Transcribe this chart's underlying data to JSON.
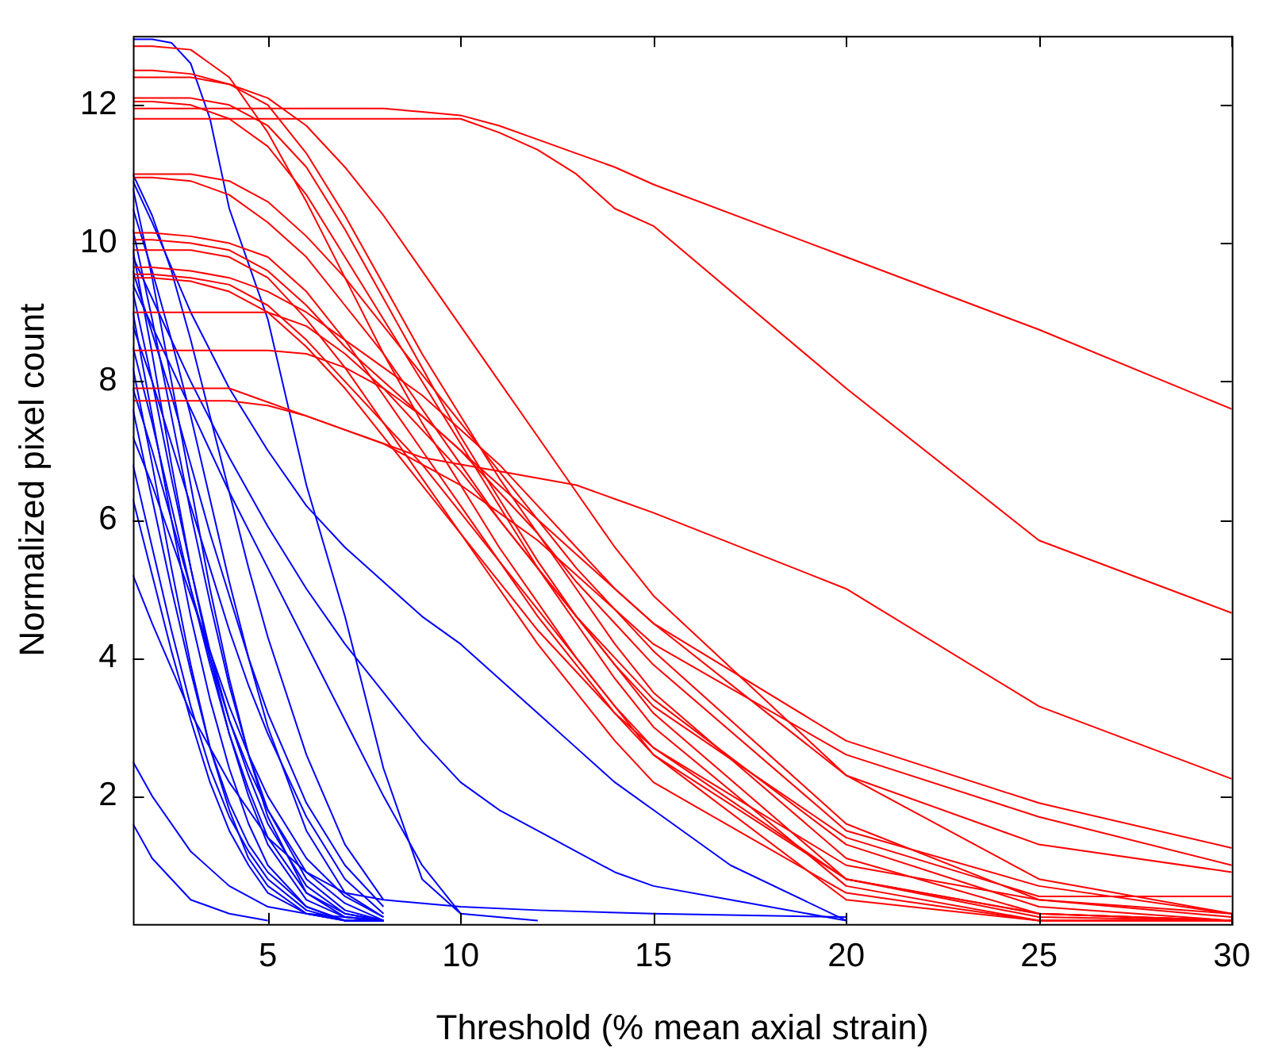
{
  "chart_data": {
    "type": "line",
    "xlabel": "Threshold (% mean axial strain)",
    "ylabel": "Normalized pixel count",
    "xlim": [
      1.5,
      30
    ],
    "ylim": [
      0.15,
      13
    ],
    "xticks": [
      5,
      10,
      15,
      20,
      25,
      30
    ],
    "yticks": [
      2,
      4,
      6,
      8,
      10,
      12
    ],
    "grid": false,
    "legend": false,
    "marker": "none",
    "line_style": "solid",
    "x": [
      1.5,
      2,
      3,
      4,
      5,
      6,
      7,
      8,
      9,
      10,
      11,
      12,
      13,
      14,
      15,
      20,
      25,
      30
    ],
    "series": [
      {
        "color": "#ff0000",
        "values": [
          11.95,
          11.95,
          11.95,
          11.95,
          11.95,
          11.95,
          11.95,
          11.95,
          11.9,
          11.85,
          11.7,
          11.5,
          11.3,
          11.1,
          10.85,
          9.8,
          8.75,
          7.6
        ]
      },
      {
        "color": "#ff0000",
        "values": [
          11.8,
          11.8,
          11.8,
          11.8,
          11.8,
          11.8,
          11.8,
          11.8,
          11.8,
          11.8,
          11.6,
          11.35,
          11.0,
          10.5,
          10.25,
          7.9,
          5.7,
          4.65
        ]
      },
      {
        "color": "#ff0000",
        "values": [
          12.85,
          12.85,
          12.8,
          12.4,
          11.6,
          10.6,
          9.5,
          8.4,
          7.4,
          6.5,
          5.6,
          4.8,
          4.0,
          3.3,
          2.6,
          0.5,
          0.2,
          0.2
        ]
      },
      {
        "color": "#ff0000",
        "values": [
          12.5,
          12.5,
          12.45,
          12.3,
          12.0,
          11.3,
          10.4,
          9.4,
          8.4,
          7.5,
          6.6,
          5.8,
          5.0,
          4.2,
          3.5,
          1.1,
          0.3,
          0.2
        ]
      },
      {
        "color": "#ff0000",
        "values": [
          12.4,
          12.4,
          12.4,
          12.3,
          12.1,
          11.7,
          11.1,
          10.4,
          9.6,
          8.8,
          8.0,
          7.2,
          6.4,
          5.6,
          4.9,
          2.3,
          0.8,
          0.3
        ]
      },
      {
        "color": "#ff0000",
        "values": [
          12.1,
          12.1,
          12.1,
          12.0,
          11.7,
          11.1,
          10.2,
          9.2,
          8.2,
          7.2,
          6.3,
          5.4,
          4.6,
          3.9,
          3.2,
          0.8,
          0.25,
          0.2
        ]
      },
      {
        "color": "#ff0000",
        "values": [
          12.05,
          12.05,
          12.0,
          11.8,
          11.4,
          10.7,
          9.8,
          8.9,
          8.0,
          7.1,
          6.2,
          5.3,
          4.5,
          3.7,
          3.0,
          0.7,
          0.2,
          0.2
        ]
      },
      {
        "color": "#ff0000",
        "values": [
          11.0,
          11.0,
          11.0,
          10.9,
          10.6,
          10.1,
          9.5,
          8.8,
          8.1,
          7.4,
          6.7,
          6.0,
          5.3,
          4.7,
          4.1,
          1.6,
          0.5,
          0.25
        ]
      },
      {
        "color": "#ff0000",
        "values": [
          10.95,
          10.95,
          10.9,
          10.7,
          10.3,
          9.8,
          9.1,
          8.4,
          7.6,
          6.8,
          6.0,
          5.3,
          4.6,
          4.0,
          3.4,
          1.3,
          0.4,
          0.2
        ]
      },
      {
        "color": "#ff0000",
        "values": [
          10.15,
          10.15,
          10.1,
          10.0,
          9.8,
          9.3,
          8.6,
          7.8,
          7.0,
          6.2,
          5.4,
          4.6,
          3.9,
          3.2,
          2.6,
          0.8,
          0.3,
          0.2
        ]
      },
      {
        "color": "#ff0000",
        "values": [
          10.05,
          10.05,
          10.0,
          9.9,
          9.6,
          9.1,
          8.5,
          8.0,
          7.5,
          7.0,
          6.5,
          6.0,
          5.5,
          5.0,
          4.5,
          2.8,
          1.9,
          1.25
        ]
      },
      {
        "color": "#ff0000",
        "values": [
          9.9,
          9.9,
          9.9,
          9.8,
          9.5,
          8.9,
          8.2,
          7.4,
          6.6,
          5.8,
          5.0,
          4.2,
          3.5,
          2.8,
          2.2,
          0.6,
          0.2,
          0.2
        ]
      },
      {
        "color": "#ff0000",
        "values": [
          9.65,
          9.65,
          9.6,
          9.5,
          9.3,
          9.0,
          8.6,
          8.2,
          7.8,
          7.3,
          6.8,
          6.2,
          5.6,
          5.0,
          4.5,
          2.3,
          1.3,
          0.9
        ]
      },
      {
        "color": "#ff0000",
        "values": [
          9.55,
          9.55,
          9.5,
          9.4,
          9.1,
          8.6,
          8.0,
          7.4,
          6.8,
          6.1,
          5.4,
          4.7,
          4.0,
          3.3,
          2.7,
          0.8,
          0.3,
          0.2
        ]
      },
      {
        "color": "#ff0000",
        "values": [
          9.5,
          9.5,
          9.45,
          9.3,
          9.0,
          8.5,
          7.9,
          7.2,
          6.5,
          5.8,
          5.1,
          4.4,
          3.8,
          3.2,
          2.7,
          1.0,
          0.5,
          0.3
        ]
      },
      {
        "color": "#ff0000",
        "values": [
          9.0,
          9.0,
          9.0,
          9.0,
          9.0,
          8.8,
          8.4,
          7.9,
          7.3,
          6.7,
          6.0,
          5.3,
          4.6,
          3.9,
          3.3,
          1.4,
          0.55,
          0.55
        ]
      },
      {
        "color": "#ff0000",
        "values": [
          8.45,
          8.45,
          8.45,
          8.45,
          8.45,
          8.4,
          8.2,
          7.9,
          7.5,
          7.0,
          6.4,
          5.8,
          5.1,
          4.5,
          3.9,
          1.5,
          0.7,
          0.3
        ]
      },
      {
        "color": "#ff0000",
        "values": [
          7.9,
          7.9,
          7.9,
          7.9,
          7.7,
          7.5,
          7.3,
          7.1,
          6.9,
          6.8,
          6.7,
          6.6,
          6.5,
          6.3,
          6.1,
          5.0,
          3.3,
          2.25
        ]
      },
      {
        "color": "#ff0000",
        "values": [
          7.72,
          7.72,
          7.72,
          7.72,
          7.65,
          7.5,
          7.3,
          7.1,
          6.8,
          6.5,
          6.1,
          5.7,
          5.2,
          4.7,
          4.2,
          2.6,
          1.7,
          1.0
        ]
      },
      {
        "color": "#0000ff",
        "x": [
          1.5,
          2,
          2.5,
          3,
          3.5,
          4,
          5,
          6,
          7,
          8,
          9,
          10,
          12
        ],
        "values": [
          12.95,
          12.95,
          12.9,
          12.6,
          11.8,
          10.5,
          8.9,
          6.5,
          4.6,
          2.4,
          0.8,
          0.3,
          0.2
        ]
      },
      {
        "color": "#0000ff",
        "x": [
          1.5,
          2,
          3,
          4,
          5,
          6,
          7,
          8,
          9,
          10,
          11,
          12,
          13,
          14,
          15,
          17,
          20
        ],
        "values": [
          10.9,
          10.3,
          9.0,
          7.9,
          7.0,
          6.2,
          5.6,
          5.1,
          4.6,
          4.2,
          3.7,
          3.2,
          2.7,
          2.2,
          1.8,
          1.0,
          0.2
        ]
      },
      {
        "color": "#0000ff",
        "x": [
          1.5,
          2,
          3,
          4,
          5,
          6,
          7,
          8,
          9,
          10,
          11,
          12,
          13,
          14,
          15,
          17,
          20
        ],
        "values": [
          9.8,
          9.2,
          8.0,
          6.9,
          5.9,
          5.0,
          4.2,
          3.5,
          2.8,
          2.2,
          1.8,
          1.5,
          1.2,
          0.9,
          0.7,
          0.5,
          0.2
        ]
      },
      {
        "color": "#0000ff",
        "x": [
          1.5,
          2,
          3,
          4,
          5,
          6,
          7,
          8,
          10,
          12,
          15,
          20
        ],
        "values": [
          5.2,
          4.5,
          3.2,
          2.2,
          1.4,
          0.9,
          0.6,
          0.5,
          0.4,
          0.35,
          0.3,
          0.25
        ]
      },
      {
        "color": "#0000ff",
        "x": [
          1.5,
          2,
          3,
          4,
          5,
          6,
          8
        ],
        "values": [
          2.5,
          2.0,
          1.2,
          0.7,
          0.4,
          0.3,
          0.2
        ]
      },
      {
        "color": "#0000ff",
        "x": [
          1.5,
          2,
          3,
          4,
          5
        ],
        "values": [
          1.6,
          1.1,
          0.5,
          0.3,
          0.2
        ]
      },
      {
        "color": "#0000ff",
        "x": [
          1.5,
          2,
          2.5,
          3,
          3.5,
          4,
          4.5,
          5,
          6,
          7,
          8
        ],
        "values": [
          10.8,
          9.5,
          8.0,
          6.5,
          5.0,
          3.7,
          2.6,
          1.7,
          0.6,
          0.25,
          0.2
        ]
      },
      {
        "color": "#0000ff",
        "x": [
          1.5,
          2,
          2.5,
          3,
          3.5,
          4,
          4.5,
          5,
          6,
          7,
          8
        ],
        "values": [
          10.5,
          9.6,
          8.6,
          7.5,
          6.3,
          5.1,
          4.0,
          3.0,
          1.5,
          0.6,
          0.25
        ]
      },
      {
        "color": "#0000ff",
        "x": [
          1.5,
          2,
          2.5,
          3,
          3.5,
          4,
          4.5,
          5,
          6,
          7,
          8
        ],
        "values": [
          10.2,
          8.9,
          7.5,
          6.1,
          4.8,
          3.6,
          2.6,
          1.8,
          0.8,
          0.35,
          0.2
        ]
      },
      {
        "color": "#0000ff",
        "x": [
          1.5,
          2,
          2.5,
          3,
          3.5,
          4,
          4.5,
          5,
          6,
          7,
          8
        ],
        "values": [
          9.9,
          8.4,
          6.8,
          5.3,
          4.0,
          2.9,
          2.0,
          1.3,
          0.5,
          0.25,
          0.2
        ]
      },
      {
        "color": "#0000ff",
        "x": [
          1.5,
          2,
          2.5,
          3,
          3.5,
          4,
          4.5,
          5,
          6,
          7,
          8
        ],
        "values": [
          9.6,
          8.7,
          7.8,
          6.8,
          5.8,
          4.9,
          4.0,
          3.2,
          1.9,
          1.0,
          0.4
        ]
      },
      {
        "color": "#0000ff",
        "x": [
          1.5,
          2,
          2.5,
          3,
          3.5,
          4,
          4.5,
          5,
          6,
          7,
          8
        ],
        "values": [
          9.3,
          8.0,
          6.6,
          5.3,
          4.1,
          3.1,
          2.3,
          1.6,
          0.7,
          0.3,
          0.2
        ]
      },
      {
        "color": "#0000ff",
        "x": [
          1.5,
          2,
          2.5,
          3,
          3.5,
          4,
          4.5,
          5,
          6,
          7,
          8
        ],
        "values": [
          9.0,
          7.5,
          6.0,
          4.6,
          3.4,
          2.4,
          1.6,
          1.0,
          0.4,
          0.2,
          0.2
        ]
      },
      {
        "color": "#0000ff",
        "x": [
          1.5,
          2,
          2.5,
          3,
          3.5,
          4,
          4.5,
          5,
          6,
          7,
          8
        ],
        "values": [
          8.8,
          8.0,
          7.1,
          6.2,
          5.3,
          4.4,
          3.6,
          2.9,
          1.7,
          0.8,
          0.3
        ]
      },
      {
        "color": "#0000ff",
        "x": [
          1.5,
          2,
          2.5,
          3,
          3.5,
          4,
          4.5,
          5,
          6,
          7,
          8
        ],
        "values": [
          8.5,
          7.4,
          6.2,
          5.0,
          3.9,
          2.9,
          2.1,
          1.4,
          0.6,
          0.3,
          0.2
        ]
      },
      {
        "color": "#0000ff",
        "x": [
          1.5,
          2,
          2.5,
          3,
          3.5,
          4,
          4.5,
          5,
          6,
          7,
          8
        ],
        "values": [
          8.2,
          6.8,
          5.3,
          3.9,
          2.7,
          1.8,
          1.1,
          0.7,
          0.3,
          0.2,
          0.2
        ]
      },
      {
        "color": "#0000ff",
        "x": [
          1.5,
          2,
          2.5,
          3,
          3.5,
          4,
          4.5,
          5,
          6,
          7,
          8
        ],
        "values": [
          7.9,
          7.0,
          6.0,
          5.0,
          4.0,
          3.1,
          2.4,
          1.8,
          0.9,
          0.45,
          0.2
        ]
      },
      {
        "color": "#0000ff",
        "x": [
          1.5,
          2,
          2.5,
          3,
          3.5,
          4,
          4.5,
          5,
          6,
          7,
          8
        ],
        "values": [
          7.6,
          6.3,
          5.0,
          3.8,
          2.7,
          1.9,
          1.3,
          0.9,
          0.4,
          0.2,
          0.2
        ]
      },
      {
        "color": "#0000ff",
        "x": [
          1.5,
          2,
          2.5,
          3,
          3.5,
          4,
          4.5,
          5,
          6,
          7,
          8
        ],
        "values": [
          7.2,
          6.5,
          5.7,
          4.9,
          4.1,
          3.3,
          2.6,
          2.0,
          1.1,
          0.55,
          0.25
        ]
      },
      {
        "color": "#0000ff",
        "x": [
          1.5,
          2,
          2.5,
          3,
          3.5,
          4,
          4.5,
          5,
          6,
          7,
          8
        ],
        "values": [
          6.8,
          5.6,
          4.4,
          3.3,
          2.4,
          1.7,
          1.2,
          0.8,
          0.35,
          0.2,
          0.2
        ]
      },
      {
        "color": "#0000ff",
        "x": [
          1.5,
          2,
          2.5,
          3,
          3.5,
          4,
          4.5,
          5,
          6,
          7,
          8
        ],
        "values": [
          6.3,
          5.2,
          4.1,
          3.1,
          2.2,
          1.5,
          1.0,
          0.6,
          0.3,
          0.2,
          0.2
        ]
      },
      {
        "color": "#0000ff",
        "x": [
          1.5,
          2,
          2.5,
          3,
          3.5,
          4,
          4.5,
          5,
          6,
          7,
          8
        ],
        "values": [
          11.0,
          10.4,
          9.6,
          8.6,
          7.5,
          6.4,
          5.3,
          4.3,
          2.6,
          1.3,
          0.5
        ]
      },
      {
        "color": "#0000ff",
        "x": [
          1.5,
          2,
          3,
          4,
          5,
          6,
          7,
          8,
          9,
          10
        ],
        "values": [
          9.4,
          8.8,
          7.6,
          6.4,
          5.3,
          4.2,
          3.1,
          2.0,
          1.0,
          0.3
        ]
      }
    ]
  }
}
